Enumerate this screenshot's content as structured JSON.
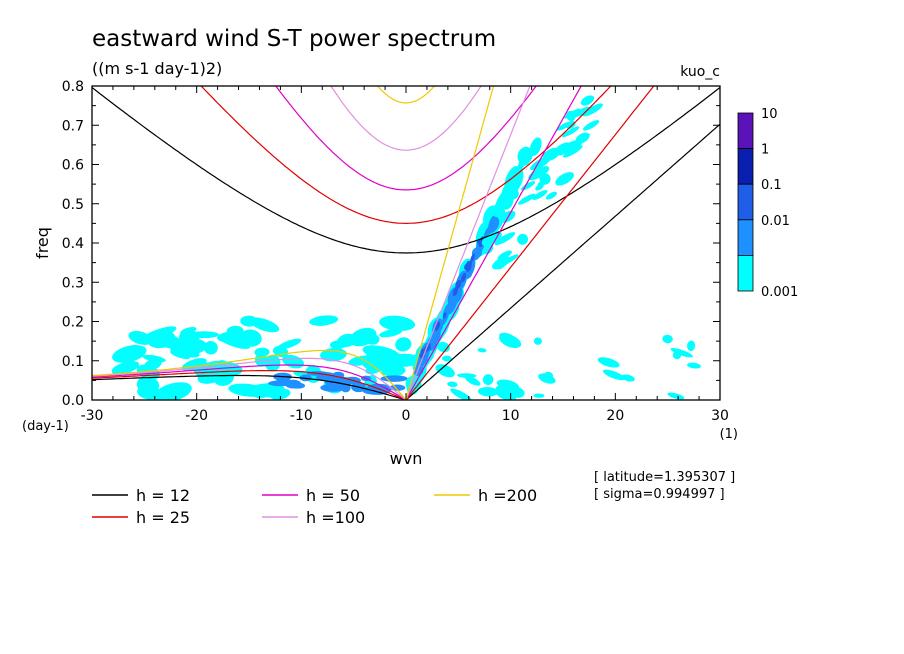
{
  "chart_data": {
    "type": "contour",
    "title": "eastward wind S-T power spectrum",
    "subtitle": "((m s-1 day-1)2)",
    "case_label": "kuo_c",
    "xlabel": "wvn",
    "ylabel": "freq",
    "x_unit": "(1)",
    "y_unit": "(day-1)",
    "xlim": [
      -30,
      30
    ],
    "ylim": [
      0,
      0.8
    ],
    "x_ticks": [
      "-30",
      "-20",
      "-10",
      "0",
      "10",
      "20",
      "30"
    ],
    "y_ticks": [
      "0.0",
      "0.1",
      "0.2",
      "0.3",
      "0.4",
      "0.5",
      "0.6",
      "0.7",
      "0.8"
    ],
    "x_tick_values": [
      -30,
      -20,
      -10,
      0,
      10,
      20,
      30
    ],
    "y_tick_values": [
      0,
      0.1,
      0.2,
      0.3,
      0.4,
      0.5,
      0.6,
      0.7,
      0.8
    ],
    "colorbar": {
      "labels": [
        "10",
        "1",
        "0.1",
        "0.01",
        "0.001"
      ],
      "colors": [
        "#5b12b8",
        "#0a1fb0",
        "#1f5ee8",
        "#1e90ff",
        "#00ffff"
      ]
    },
    "dispersion_curves": [
      {
        "label": "h = 12",
        "h": 12,
        "color": "#000000"
      },
      {
        "label": "h = 25",
        "h": 25,
        "color": "#e00000"
      },
      {
        "label": "h = 50",
        "h": 50,
        "color": "#e000c8"
      },
      {
        "label": "h =100",
        "h": 100,
        "color": "#e090e0"
      },
      {
        "label": "h =200",
        "h": 200,
        "color": "#f0c800"
      }
    ],
    "annotations": [
      "[ latitude=1.395307 ]",
      "[ sigma=0.994997 ]"
    ]
  }
}
